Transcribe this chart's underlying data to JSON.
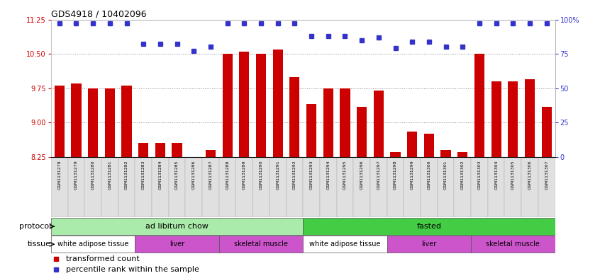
{
  "title": "GDS4918 / 10402096",
  "samples": [
    "GSM1131278",
    "GSM1131279",
    "GSM1131280",
    "GSM1131281",
    "GSM1131282",
    "GSM1131283",
    "GSM1131284",
    "GSM1131285",
    "GSM1131286",
    "GSM1131287",
    "GSM1131288",
    "GSM1131289",
    "GSM1131290",
    "GSM1131291",
    "GSM1131292",
    "GSM1131293",
    "GSM1131294",
    "GSM1131295",
    "GSM1131296",
    "GSM1131297",
    "GSM1131298",
    "GSM1131299",
    "GSM1131300",
    "GSM1131301",
    "GSM1131302",
    "GSM1131303",
    "GSM1131304",
    "GSM1131305",
    "GSM1131306",
    "GSM1131307"
  ],
  "bar_values": [
    9.8,
    9.85,
    9.75,
    9.75,
    9.8,
    8.55,
    8.55,
    8.55,
    8.25,
    8.4,
    10.5,
    10.55,
    10.5,
    10.6,
    10.0,
    9.4,
    9.75,
    9.75,
    9.35,
    9.7,
    8.35,
    8.8,
    8.75,
    8.4,
    8.35,
    10.5,
    9.9,
    9.9,
    9.95,
    9.35
  ],
  "percentile_values": [
    97,
    97,
    97,
    97,
    97,
    82,
    82,
    82,
    77,
    80,
    97,
    97,
    97,
    97,
    97,
    88,
    88,
    88,
    85,
    87,
    79,
    84,
    84,
    80,
    80,
    97,
    97,
    97,
    97,
    97
  ],
  "ylim_left": [
    8.25,
    11.25
  ],
  "ylim_right": [
    0,
    100
  ],
  "yticks_left": [
    8.25,
    9.0,
    9.75,
    10.5,
    11.25
  ],
  "yticks_right": [
    0,
    25,
    50,
    75,
    100
  ],
  "bar_color": "#cc0000",
  "dot_color": "#3333cc",
  "plot_bg_color": "#ffffff",
  "gridline_color": "#888888",
  "protocol_groups": [
    {
      "label": "ad libitum chow",
      "start": 0,
      "end": 14,
      "color": "#aaeaaa"
    },
    {
      "label": "fasted",
      "start": 15,
      "end": 29,
      "color": "#44cc44"
    }
  ],
  "tissue_groups": [
    {
      "label": "white adipose tissue",
      "start": 0,
      "end": 4,
      "color": "#ffffff"
    },
    {
      "label": "liver",
      "start": 5,
      "end": 9,
      "color": "#dd66dd"
    },
    {
      "label": "skeletal muscle",
      "start": 10,
      "end": 14,
      "color": "#dd66dd"
    },
    {
      "label": "white adipose tissue",
      "start": 15,
      "end": 19,
      "color": "#ffffff"
    },
    {
      "label": "liver",
      "start": 20,
      "end": 24,
      "color": "#dd66dd"
    },
    {
      "label": "skeletal muscle",
      "start": 25,
      "end": 29,
      "color": "#dd66dd"
    }
  ],
  "legend_items": [
    {
      "label": "transformed count",
      "color": "#cc0000"
    },
    {
      "label": "percentile rank within the sample",
      "color": "#3333cc"
    }
  ]
}
